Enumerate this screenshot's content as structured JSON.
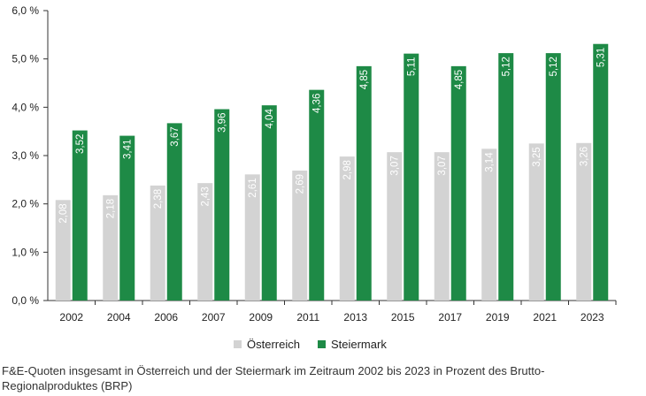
{
  "chart_data": {
    "type": "bar",
    "categories": [
      "2002",
      "2004",
      "2006",
      "2007",
      "2009",
      "2011",
      "2013",
      "2015",
      "2017",
      "2019",
      "2021",
      "2023"
    ],
    "series": [
      {
        "name": "Österreich",
        "color": "#d3d3d3",
        "values": [
          2.08,
          2.18,
          2.38,
          2.43,
          2.61,
          2.69,
          2.98,
          3.07,
          3.07,
          3.14,
          3.25,
          3.26
        ],
        "labels": [
          "2,08",
          "2,18",
          "2,38",
          "2,43",
          "2,61",
          "2,69",
          "2,98",
          "3,07",
          "3,07",
          "3,14",
          "3,25",
          "3,26"
        ]
      },
      {
        "name": "Steiermark",
        "color": "#1e8a46",
        "values": [
          3.52,
          3.41,
          3.67,
          3.96,
          4.04,
          4.36,
          4.85,
          5.11,
          4.85,
          5.12,
          5.12,
          5.31
        ],
        "labels": [
          "3,52",
          "3,41",
          "3,67",
          "3,96",
          "4,04",
          "4,36",
          "4,85",
          "5,11",
          "4,85",
          "5,12",
          "5,12",
          "5,31"
        ]
      }
    ],
    "ylim": [
      0,
      6
    ],
    "yticks": [
      0,
      1,
      2,
      3,
      4,
      5,
      6
    ],
    "ytick_labels": [
      "0,0 %",
      "1,0 %",
      "2,0 %",
      "3,0 %",
      "4,0 %",
      "5,0 %",
      "6,0 %"
    ],
    "grid": false,
    "legend_position": "bottom"
  },
  "caption": "F&E-Quoten insgesamt in Österreich und der Steiermark im Zeitraum 2002 bis 2023 in Prozent des Brutto-Regionalproduktes (BRP)"
}
